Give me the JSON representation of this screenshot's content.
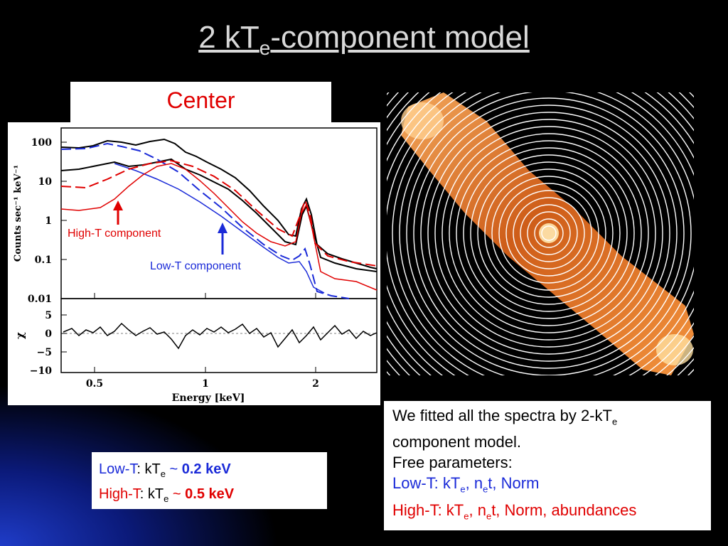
{
  "slide": {
    "title_main": "2 kT",
    "title_sub": "e",
    "title_rest": "-component model"
  },
  "panel_label": "Center",
  "plot": {
    "ylabel_top": "Counts sec⁻¹ keV⁻¹",
    "ylabel_bottom": "χ",
    "xlabel": "Energy [keV]",
    "y_ticks_top": [
      "100",
      "10",
      "1",
      "0.1",
      "0.01"
    ],
    "y_ticks_bottom": [
      "5",
      "0",
      "−5",
      "−10"
    ],
    "x_ticks": [
      "0.5",
      "1",
      "2"
    ],
    "annotation_high": "High-T component",
    "annotation_low": "Low-T component",
    "colors": {
      "data": "#000000",
      "high": "#e00000",
      "low": "#1a2ad8"
    }
  },
  "results": {
    "low_label": "Low-T",
    "low_text": ": kT",
    "low_sub": "e",
    "low_approx": " ~ ",
    "low_value": "0.2 keV",
    "high_label": "High-T",
    "high_text": ": kT",
    "high_sub": "e",
    "high_approx": " ~ ",
    "high_value": "0.5 keV"
  },
  "description": {
    "line1_a": "We fitted all the spectra by 2-kT",
    "line1_sub": "e",
    "line2": "component model.",
    "line3": "Free parameters:",
    "low_a": "Low-T: kT",
    "low_sub1": "e",
    "low_b": ", n",
    "low_sub2": "e",
    "low_c": "t, Norm",
    "high_a": "High-T: kT",
    "high_sub1": "e",
    "high_b": ", n",
    "high_sub2": "e",
    "high_c": "t, Norm, abundances"
  }
}
